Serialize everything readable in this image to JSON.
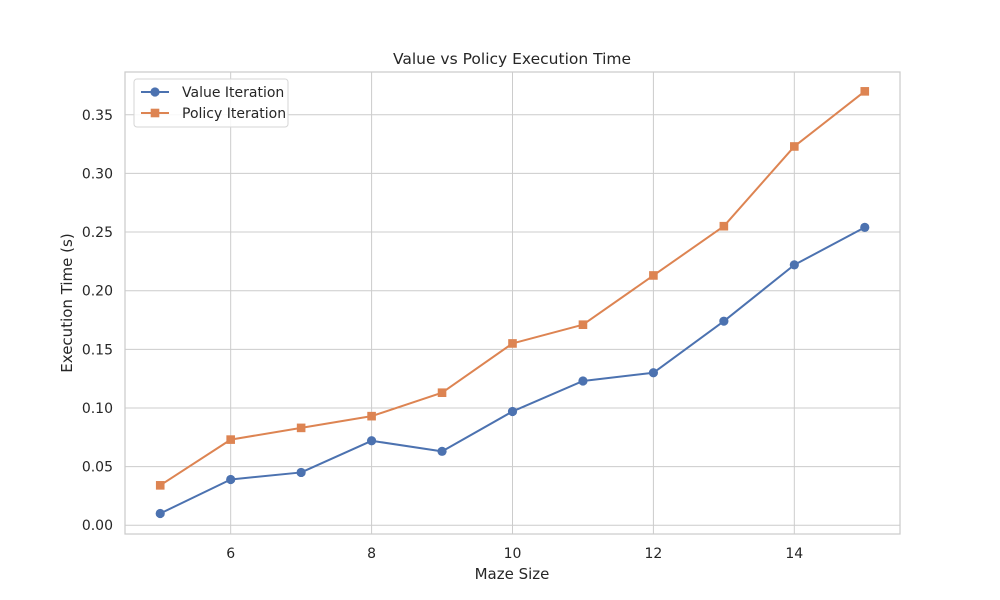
{
  "chart_data": {
    "type": "line",
    "title": "Value vs Policy Execution Time",
    "xlabel": "Maze Size",
    "ylabel": "Execution Time (s)",
    "x": [
      5,
      6,
      7,
      8,
      9,
      10,
      11,
      12,
      13,
      14,
      15
    ],
    "xlim": [
      4.5,
      15.5
    ],
    "ylim": [
      -0.0075,
      0.3865
    ],
    "xticks": [
      6,
      8,
      10,
      12,
      14
    ],
    "xtick_labels": [
      "6",
      "8",
      "10",
      "12",
      "14"
    ],
    "yticks": [
      0.0,
      0.05,
      0.1,
      0.15,
      0.2,
      0.25,
      0.3,
      0.35
    ],
    "ytick_labels": [
      "0.00",
      "0.05",
      "0.10",
      "0.15",
      "0.20",
      "0.25",
      "0.30",
      "0.35"
    ],
    "grid": true,
    "legend_position": "top-left",
    "series": [
      {
        "name": "Value Iteration",
        "marker": "circle",
        "color": "#4c72b0",
        "values": [
          0.01,
          0.039,
          0.045,
          0.072,
          0.063,
          0.097,
          0.123,
          0.13,
          0.174,
          0.222,
          0.254
        ]
      },
      {
        "name": "Policy Iteration",
        "marker": "square",
        "color": "#dd8452",
        "values": [
          0.034,
          0.073,
          0.083,
          0.093,
          0.113,
          0.155,
          0.171,
          0.213,
          0.255,
          0.323,
          0.37
        ]
      }
    ]
  }
}
